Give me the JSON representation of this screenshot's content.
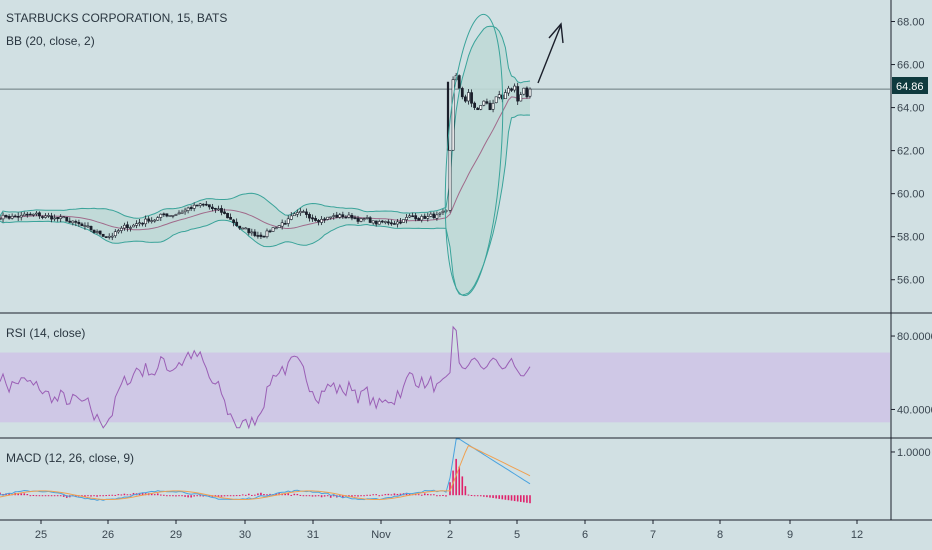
{
  "chart_data": [
    {
      "type": "candlestick",
      "title": "STARBUCKS CORPORATION, 15, BATS",
      "indicator_label": "BB (20, close, 2)",
      "ylim": [
        54.5,
        69.0
      ],
      "y_ticks": [
        "68.00",
        "66.00",
        "64.00",
        "62.00",
        "60.00",
        "58.00",
        "56.00"
      ],
      "y_tick_values": [
        68,
        66,
        64,
        62,
        60,
        58,
        56
      ],
      "last_price": "64.86",
      "last_price_value": 64.86,
      "colors": {
        "up": "#ffffff",
        "down": "#1b1f2b",
        "basis": "#a06a8a",
        "band": "#3aa39a",
        "band_fill": "#bfd9d6",
        "price_line": "#6a7a7e"
      },
      "annotations": {
        "arrow": "up-right",
        "ellipse": "highlight around gap"
      }
    },
    {
      "type": "line",
      "title": "RSI (14, close)",
      "ylim": [
        25,
        92
      ],
      "y_ticks": [
        "80.0000",
        "40.0000"
      ],
      "y_tick_values": [
        80,
        40
      ],
      "band": [
        33,
        71
      ],
      "colors": {
        "line": "#9a5fb5",
        "band_fill": "#cfc8e6"
      }
    },
    {
      "type": "line+bar",
      "title": "MACD (12, 26, close, 9)",
      "ylim": [
        -0.55,
        1.3
      ],
      "y_ticks": [
        "1.0000"
      ],
      "y_tick_values": [
        1.0
      ],
      "colors": {
        "macd": "#4aa3df",
        "signal": "#f0a050",
        "hist": "#e0206a"
      }
    }
  ],
  "x_axis": {
    "labels": [
      "25",
      "26",
      "29",
      "30",
      "31",
      "Nov",
      "2",
      "5",
      "6",
      "7",
      "8",
      "9",
      "12"
    ]
  }
}
